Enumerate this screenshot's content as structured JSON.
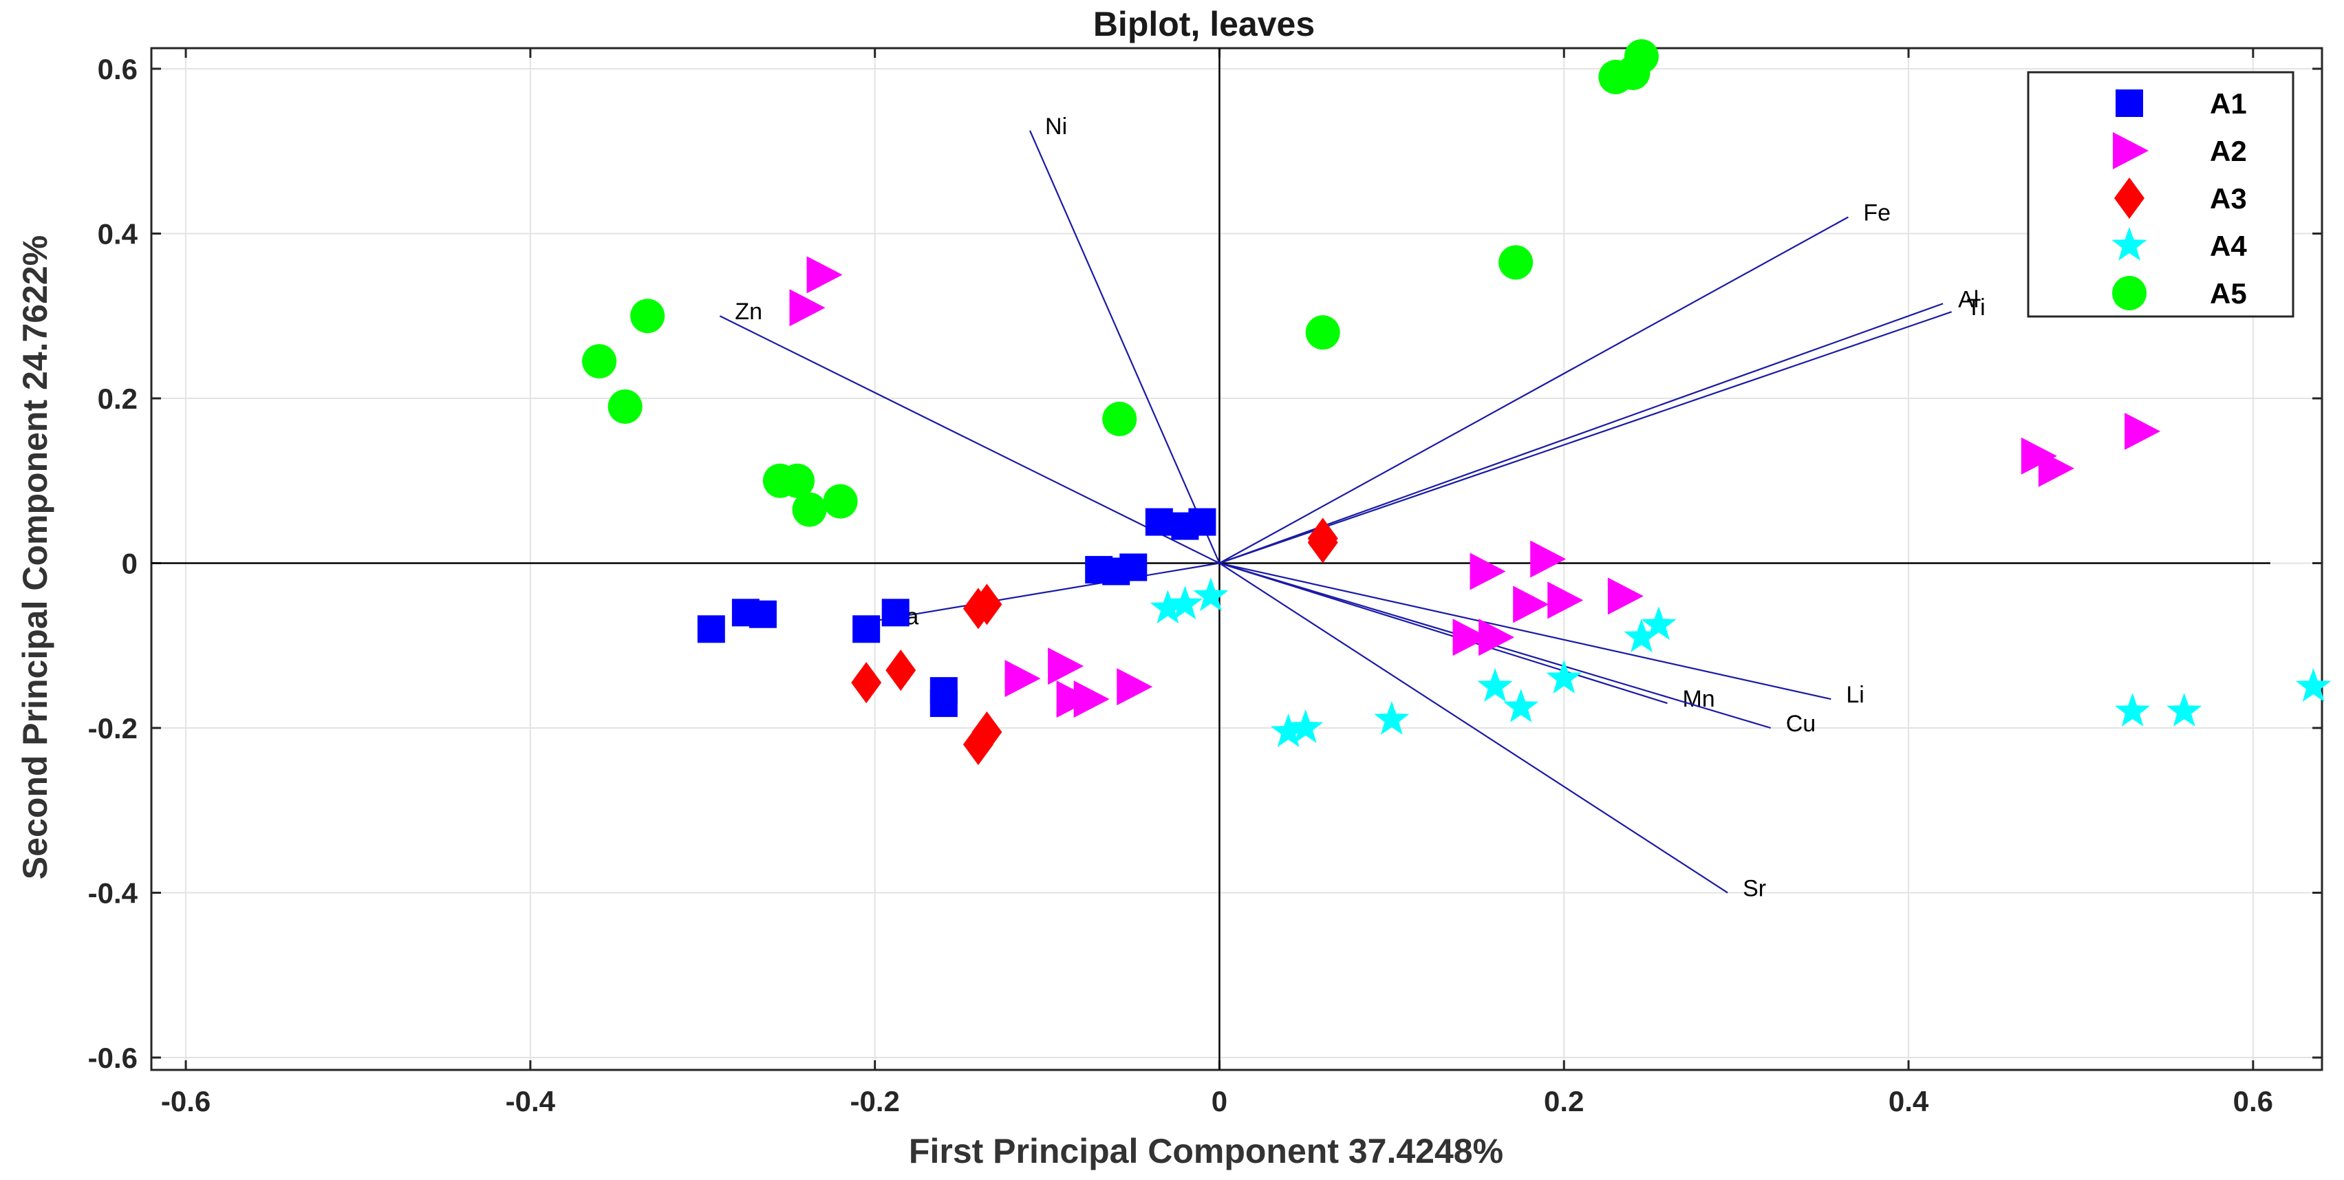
{
  "chart_data": {
    "type": "scatter",
    "title": "Biplot, leaves",
    "xlabel": "First Principal Component 37.4248%",
    "ylabel": "Second Principal Component 24.7622%",
    "xlim": [
      -0.62,
      0.64
    ],
    "ylim": [
      -0.615,
      0.625
    ],
    "xticks": [
      -0.6,
      -0.4,
      -0.2,
      0,
      0.2,
      0.4,
      0.6
    ],
    "yticks": [
      -0.6,
      -0.4,
      -0.2,
      0,
      0.2,
      0.4,
      0.6
    ],
    "grid": true,
    "legend_position": "top-right",
    "axis_lines": {
      "horizontal_x_max": 0.61,
      "vertical_y_min": -0.615,
      "vertical_y_max": 0.625
    },
    "vectors": [
      {
        "label": "Ni",
        "x": -0.11,
        "y": 0.525
      },
      {
        "label": "Zn",
        "x": -0.29,
        "y": 0.3
      },
      {
        "label": "Fe",
        "x": 0.365,
        "y": 0.42
      },
      {
        "label": "Al",
        "x": 0.42,
        "y": 0.315
      },
      {
        "label": "Ti",
        "x": 0.425,
        "y": 0.305
      },
      {
        "label": "Ba",
        "x": -0.2,
        "y": -0.07
      },
      {
        "label": "Li",
        "x": 0.355,
        "y": -0.165
      },
      {
        "label": "Mn",
        "x": 0.26,
        "y": -0.17
      },
      {
        "label": "Cu",
        "x": 0.32,
        "y": -0.2
      },
      {
        "label": "Sr",
        "x": 0.295,
        "y": -0.4
      }
    ],
    "series": [
      {
        "name": "A1",
        "marker": "square",
        "color": "#0000ff",
        "points": [
          [
            -0.295,
            -0.08
          ],
          [
            -0.275,
            -0.06
          ],
          [
            -0.265,
            -0.062
          ],
          [
            -0.205,
            -0.08
          ],
          [
            -0.188,
            -0.06
          ],
          [
            -0.16,
            -0.155
          ],
          [
            -0.16,
            -0.17
          ],
          [
            -0.07,
            -0.008
          ],
          [
            -0.06,
            -0.01
          ],
          [
            -0.05,
            -0.005
          ],
          [
            -0.035,
            0.05
          ],
          [
            -0.02,
            0.045
          ],
          [
            -0.01,
            0.05
          ]
        ]
      },
      {
        "name": "A2",
        "marker": "triangle-right",
        "color": "#ff00ff",
        "points": [
          [
            -0.23,
            0.35
          ],
          [
            -0.24,
            0.31
          ],
          [
            -0.115,
            -0.14
          ],
          [
            -0.09,
            -0.125
          ],
          [
            -0.085,
            -0.165
          ],
          [
            -0.075,
            -0.165
          ],
          [
            -0.05,
            -0.15
          ],
          [
            0.145,
            -0.09
          ],
          [
            0.155,
            -0.01
          ],
          [
            0.16,
            -0.09
          ],
          [
            0.18,
            -0.05
          ],
          [
            0.19,
            0.005
          ],
          [
            0.2,
            -0.045
          ],
          [
            0.235,
            -0.04
          ],
          [
            0.475,
            0.13
          ],
          [
            0.485,
            0.115
          ],
          [
            0.535,
            0.16
          ]
        ]
      },
      {
        "name": "A3",
        "marker": "diamond",
        "color": "#ff0000",
        "points": [
          [
            -0.205,
            -0.145
          ],
          [
            -0.185,
            -0.13
          ],
          [
            -0.14,
            -0.055
          ],
          [
            -0.135,
            -0.05
          ],
          [
            -0.14,
            -0.22
          ],
          [
            -0.135,
            -0.205
          ],
          [
            0.06,
            0.03
          ],
          [
            0.06,
            0.025
          ]
        ]
      },
      {
        "name": "A4",
        "marker": "pentagram",
        "color": "#00ffff",
        "points": [
          [
            -0.03,
            -0.055
          ],
          [
            -0.02,
            -0.05
          ],
          [
            -0.005,
            -0.04
          ],
          [
            0.04,
            -0.205
          ],
          [
            0.05,
            -0.2
          ],
          [
            0.1,
            -0.19
          ],
          [
            0.16,
            -0.15
          ],
          [
            0.175,
            -0.175
          ],
          [
            0.2,
            -0.14
          ],
          [
            0.245,
            -0.09
          ],
          [
            0.255,
            -0.075
          ],
          [
            0.53,
            -0.18
          ],
          [
            0.56,
            -0.18
          ],
          [
            0.635,
            -0.15
          ]
        ]
      },
      {
        "name": "A5",
        "marker": "circle",
        "color": "#00ff00",
        "points": [
          [
            -0.36,
            0.245
          ],
          [
            -0.345,
            0.19
          ],
          [
            -0.332,
            0.3
          ],
          [
            -0.255,
            0.1
          ],
          [
            -0.245,
            0.1
          ],
          [
            -0.238,
            0.065
          ],
          [
            -0.22,
            0.075
          ],
          [
            -0.058,
            0.175
          ],
          [
            0.06,
            0.28
          ],
          [
            0.172,
            0.365
          ],
          [
            0.23,
            0.59
          ],
          [
            0.24,
            0.595
          ],
          [
            0.245,
            0.615
          ]
        ]
      }
    ]
  }
}
